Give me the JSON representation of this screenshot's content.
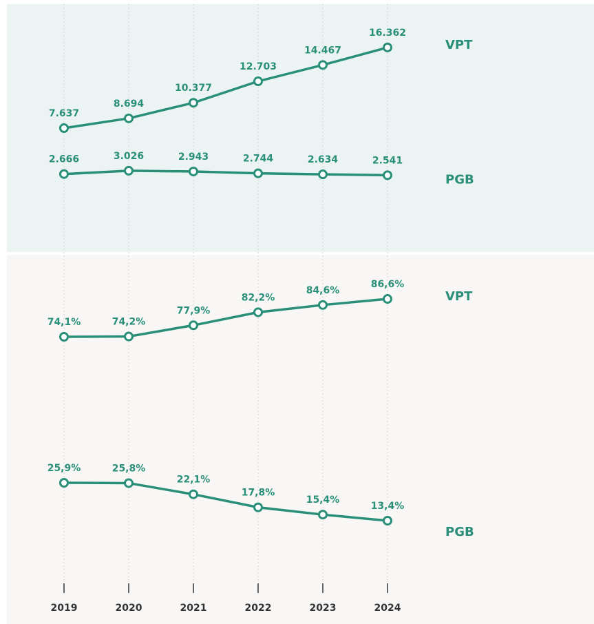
{
  "chart_data": [
    {
      "type": "line",
      "series": [
        {
          "name": "VPT",
          "color": "#2a8f78",
          "values": [
            7637,
            8694,
            10377,
            12703,
            14467,
            16362
          ],
          "value_labels": [
            "7.637",
            "8.694",
            "10.377",
            "12.703",
            "14.467",
            "16.362"
          ]
        },
        {
          "name": "PGB",
          "color": "#2a8f78",
          "values": [
            2666,
            3026,
            2943,
            2744,
            2634,
            2541
          ],
          "value_labels": [
            "2.666",
            "3.026",
            "2.943",
            "2.744",
            "2.634",
            "2.541"
          ]
        }
      ],
      "ylim": [
        -5700,
        20900
      ],
      "background": "#ebf4f2"
    },
    {
      "type": "line",
      "categories": [
        "2019",
        "2020",
        "2021",
        "2022",
        "2023",
        "2024"
      ],
      "series": [
        {
          "name": "VPT",
          "color": "#2a8f78",
          "values": [
            74.1,
            74.2,
            77.9,
            82.2,
            84.6,
            86.6
          ],
          "value_labels": [
            "74,1%",
            "74,2%",
            "77,9%",
            "82,2%",
            "84,6%",
            "86,6%"
          ]
        },
        {
          "name": "PGB",
          "color": "#2a8f78",
          "values": [
            25.9,
            25.8,
            22.1,
            17.8,
            15.4,
            13.4
          ],
          "value_labels": [
            "25,9%",
            "25,8%",
            "22,1%",
            "17,8%",
            "15,4%",
            "13,4%"
          ]
        }
      ],
      "ylim": [
        -5.7,
        100.7
      ],
      "background": "#f8f7f5"
    }
  ]
}
